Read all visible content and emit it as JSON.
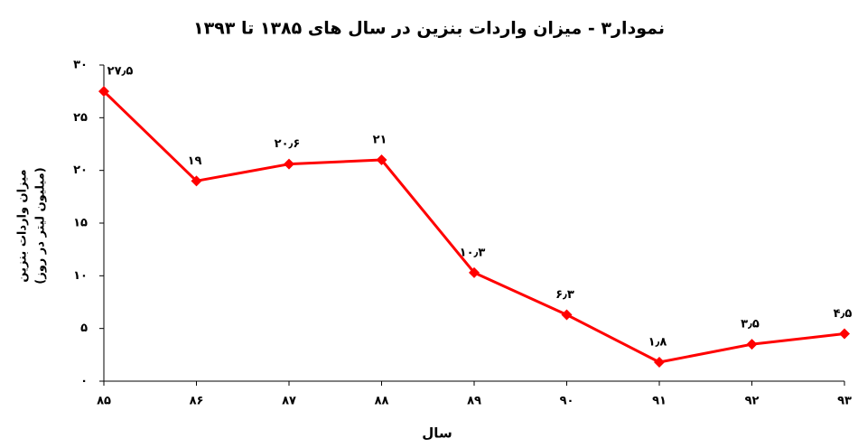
{
  "chart_data": {
    "type": "line",
    "title": "نمودار۳ - میزان واردات بنزین در سال های ۱۳۸۵ تا ۱۳۹۳",
    "xlabel": "سال",
    "ylabel": [
      "میزان واردات بنزین",
      "(میلیون لیتر در روز)"
    ],
    "categories": [
      "۸۵",
      "۸۶",
      "۸۷",
      "۸۸",
      "۸۹",
      "۹۰",
      "۹۱",
      "۹۲",
      "۹۳"
    ],
    "values": [
      27.5,
      19,
      20.6,
      21,
      10.3,
      6.3,
      1.8,
      3.5,
      4.5
    ],
    "value_labels": [
      "۲۷٫۵",
      "۱۹",
      "۲۰٫۶",
      "۲۱",
      "۱۰٫۳",
      "۶٫۳",
      "۱٫۸",
      "۳٫۵",
      "۴٫۵"
    ],
    "color": "#ff0000",
    "ylim": [
      0,
      30
    ],
    "yticks": [
      {
        "value": 0,
        "label": "۰"
      },
      {
        "value": 5,
        "label": "۵"
      },
      {
        "value": 10,
        "label": "۱۰"
      },
      {
        "value": 15,
        "label": "۱۵"
      },
      {
        "value": 20,
        "label": "۲۰"
      },
      {
        "value": 25,
        "label": "۲۵"
      },
      {
        "value": 30,
        "label": "۳۰"
      }
    ],
    "grid": false
  }
}
